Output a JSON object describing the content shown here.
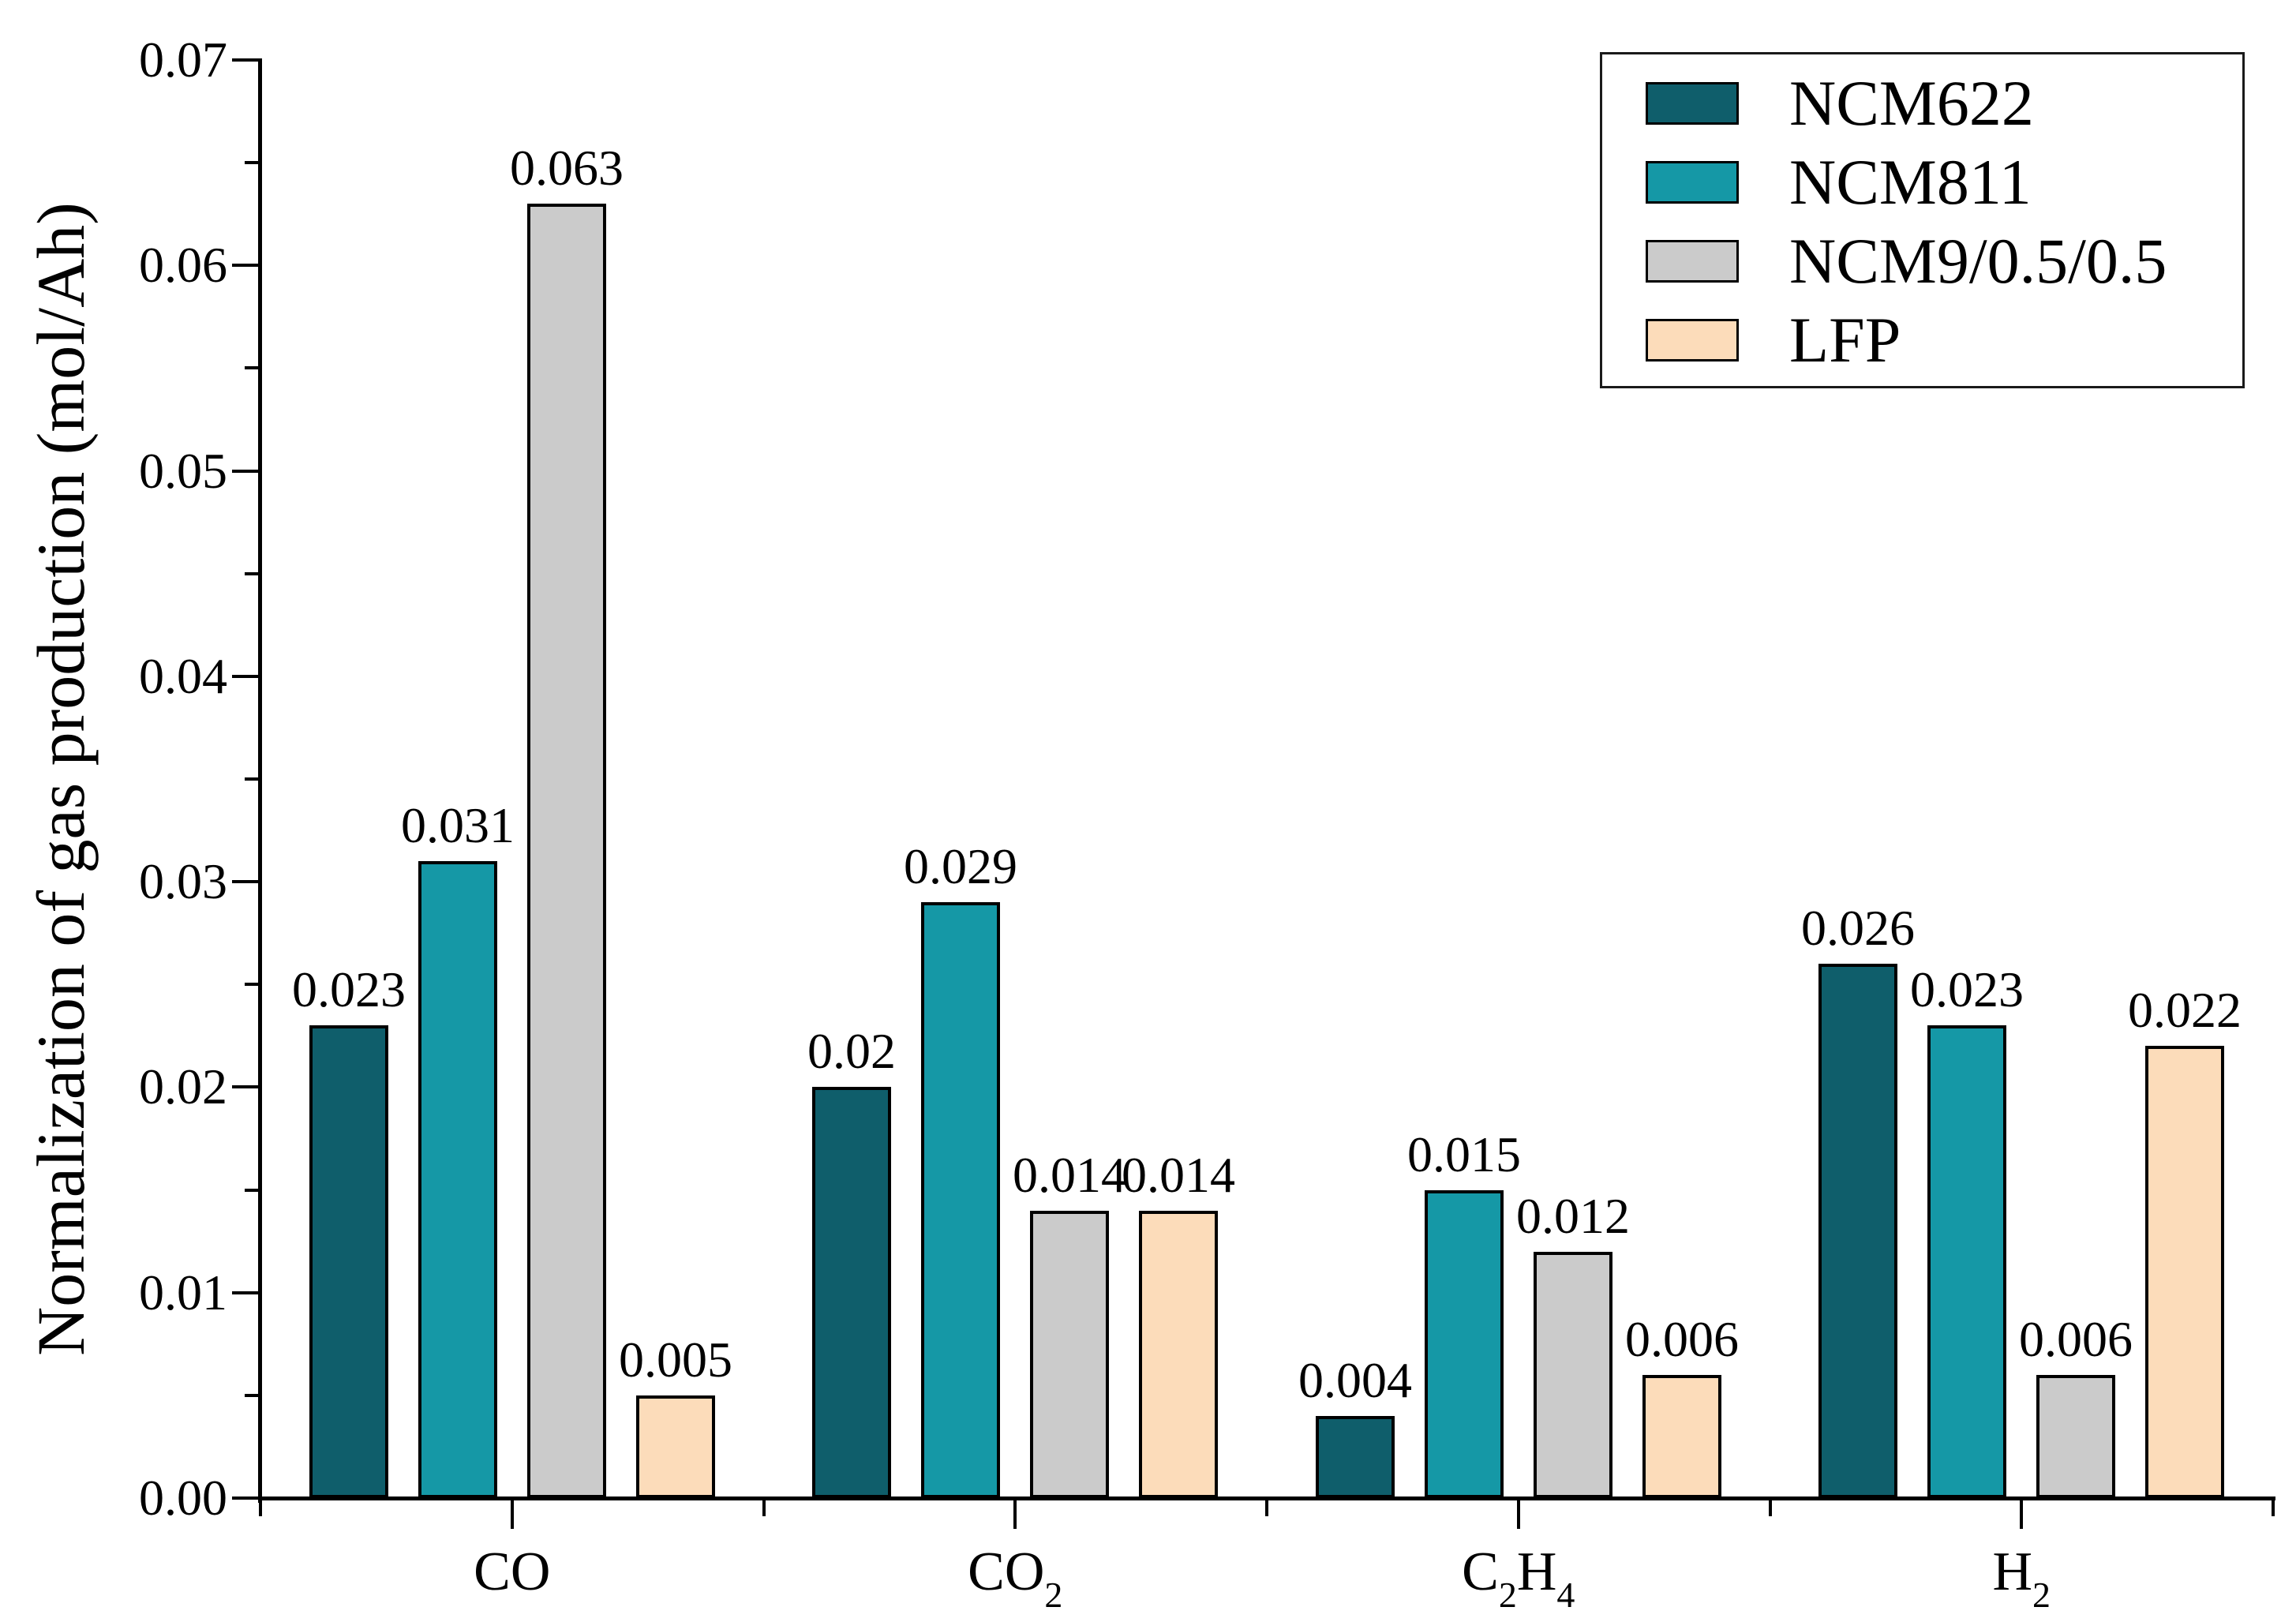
{
  "chart_data": {
    "type": "bar",
    "title": "",
    "xlabel": "",
    "ylabel": "Normalization of gas production (mol/Ah)",
    "ylim": [
      0,
      0.07
    ],
    "ytick_step": 0.01,
    "ytick_minor_step": 0.005,
    "ytick_labels": [
      "0.00",
      "0.01",
      "0.02",
      "0.03",
      "0.04",
      "0.05",
      "0.06",
      "0.07"
    ],
    "grid": false,
    "legend_position": "top-right",
    "bar_edge_color": "#000000",
    "categories": [
      {
        "name": "CO",
        "parts": [
          {
            "text": "CO"
          }
        ]
      },
      {
        "name": "CO2",
        "parts": [
          {
            "text": "CO"
          },
          {
            "sub": "2"
          }
        ]
      },
      {
        "name": "C2H4",
        "parts": [
          {
            "text": "C"
          },
          {
            "sub": "2"
          },
          {
            "text": "H"
          },
          {
            "sub": "4"
          }
        ]
      },
      {
        "name": "H2",
        "parts": [
          {
            "text": "H"
          },
          {
            "sub": "2"
          }
        ]
      }
    ],
    "series": [
      {
        "name": "NCM622",
        "color": "#0f5e6b",
        "values": [
          0.023,
          0.02,
          0.004,
          0.026
        ],
        "labels": [
          "0.023",
          "0.02",
          "0.004",
          "0.026"
        ]
      },
      {
        "name": "NCM811",
        "color": "#1598a6",
        "values": [
          0.031,
          0.029,
          0.015,
          0.023
        ],
        "labels": [
          "0.031",
          "0.029",
          "0.015",
          "0.023"
        ]
      },
      {
        "name": "NCM9/0.5/0.5",
        "color": "#cbcbcb",
        "values": [
          0.063,
          0.014,
          0.012,
          0.006
        ],
        "labels": [
          "0.063",
          "0.014",
          "0.012",
          "0.006"
        ]
      },
      {
        "name": "LFP",
        "color": "#fcdcba",
        "values": [
          0.005,
          0.014,
          0.006,
          0.022
        ],
        "labels": [
          "0.005",
          "0.014",
          "0.006",
          "0.022"
        ]
      }
    ]
  }
}
